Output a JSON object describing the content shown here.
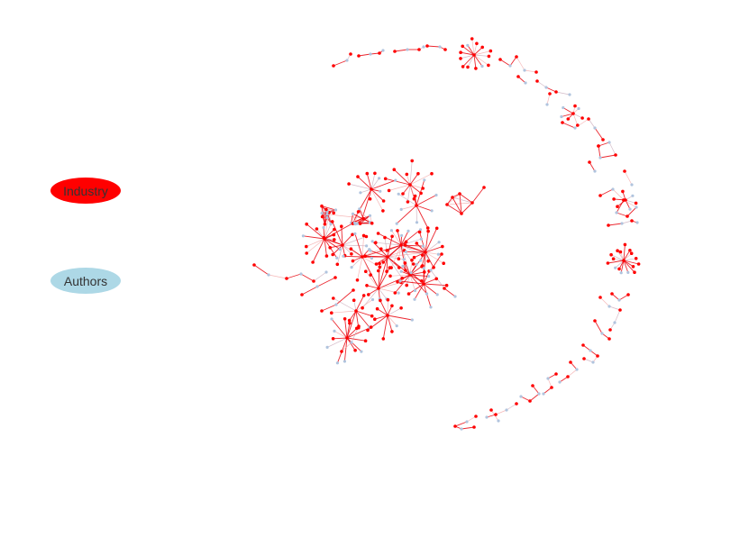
{
  "legend": {
    "items": [
      {
        "label": "Industry",
        "color": "#ff0000"
      },
      {
        "label": "Authors",
        "color": "#add8e6"
      }
    ]
  },
  "colors": {
    "industry_node": "#ff0000",
    "author_node": "#b0c4de",
    "edge_primary": "#e8000b",
    "edge_secondary": "#f4a6a6",
    "edge_muted": "#c9a9b9"
  }
}
